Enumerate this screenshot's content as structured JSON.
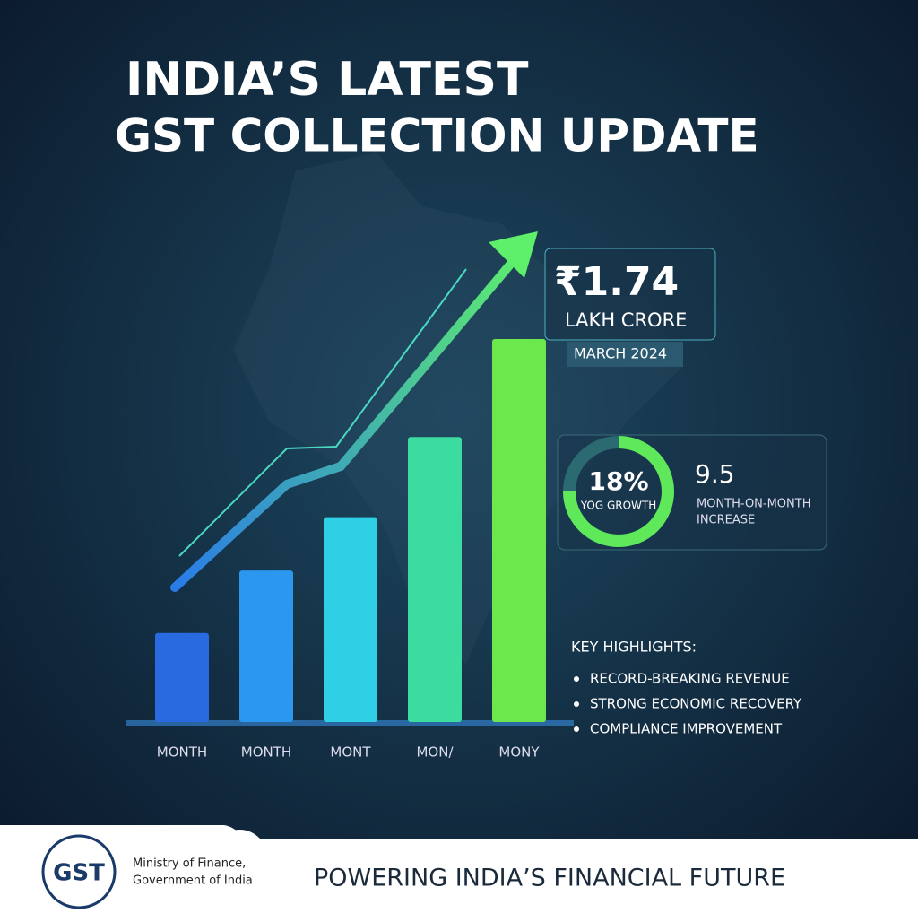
{
  "header": {
    "title_lines": [
      "INDIA’S LATEST",
      "GST COLLECTION UPDATE"
    ]
  },
  "chart_data": {
    "type": "bar",
    "categories": [
      "MONTH",
      "MONTH",
      "MONT",
      "MON/",
      "MONY"
    ],
    "values": [
      1,
      1.7,
      2.3,
      3.2,
      4.3
    ],
    "colors": [
      "#2a6ae0",
      "#2c97ef",
      "#2fd0e6",
      "#3cdca0",
      "#6de84c"
    ]
  },
  "callout": {
    "amount": "₹1.74",
    "unit": "LAKH CRORE",
    "period": "MARCH 2024"
  },
  "growth": {
    "percent": "18%",
    "percent_label": "YOG GROWTH",
    "increase": "9.5",
    "increase_label_lines": [
      "MONTH-ON-MONTH",
      "INCREASE"
    ]
  },
  "highlights": {
    "title": "KEY HIGHLIGHTS:",
    "items": [
      "RECORD-BREAKING REVENUE",
      "STRONG ECONOMIC RECOVERY",
      "COMPLIANCE IMPROVEMENT"
    ]
  },
  "footer": {
    "logo": "GST",
    "ministry_lines": [
      "Ministry of Finance,",
      "Government of India"
    ],
    "tagline": "POWERING INDIA’S FINANCIAL FUTURE"
  }
}
